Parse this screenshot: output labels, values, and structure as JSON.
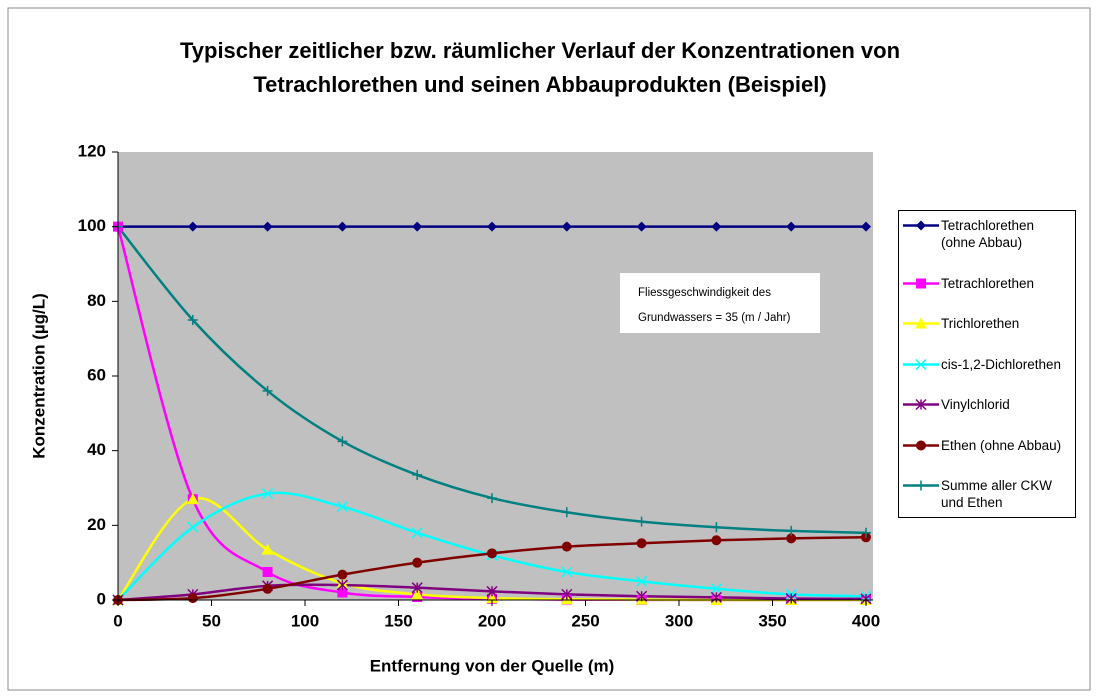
{
  "chart_data": {
    "type": "line",
    "title": [
      "Typischer zeitlicher bzw. räumlicher Verlauf der Konzentrationen von",
      "Tetrachlorethen und seinen Abbauprodukten (Beispiel)"
    ],
    "x_label": "Entfernung von der Quelle (m)",
    "y_label": "Konzentration (µg/L)",
    "annotation": [
      "Fliessgeschwindigkeit des",
      "Grundwassers = 35 (m / Jahr)"
    ],
    "x": [
      0,
      40,
      80,
      120,
      160,
      200,
      240,
      280,
      320,
      360,
      400
    ],
    "xlim": [
      0,
      400
    ],
    "xticks": [
      0,
      50,
      100,
      150,
      200,
      250,
      300,
      350,
      400
    ],
    "ylim": [
      0,
      120
    ],
    "yticks": [
      0,
      20,
      40,
      60,
      80,
      100,
      120
    ],
    "grid": false,
    "legend": "right",
    "series": [
      {
        "name": "Tetrachlorethen (ohne Abbau)",
        "color": "#000080",
        "marker": "diamond",
        "values": [
          100,
          100,
          100,
          100,
          100,
          100,
          100,
          100,
          100,
          100,
          100
        ]
      },
      {
        "name": "Tetrachlorethen",
        "color": "#ff00ff",
        "marker": "square",
        "values": [
          100,
          27,
          7.5,
          2,
          0.8,
          0.3,
          0.1,
          0.05,
          0,
          0,
          0
        ]
      },
      {
        "name": "Trichlorethen",
        "color": "#ffff00",
        "marker": "triangle",
        "values": [
          0,
          27,
          13.5,
          4.5,
          1.5,
          0.5,
          0.2,
          0.1,
          0,
          0,
          0
        ]
      },
      {
        "name": "cis-1,2-Dichlorethen",
        "color": "#00ffff",
        "marker": "x",
        "values": [
          0,
          19.5,
          28.5,
          25,
          18,
          12,
          7.5,
          5,
          3,
          1.5,
          1
        ]
      },
      {
        "name": "Vinylchlorid",
        "color": "#800080",
        "marker": "star",
        "values": [
          0,
          1.5,
          3.8,
          4,
          3.3,
          2.3,
          1.5,
          1,
          0.7,
          0.4,
          0.3
        ]
      },
      {
        "name": "Ethen (ohne Abbau)",
        "color": "#800000",
        "marker": "circle",
        "values": [
          0,
          0.5,
          3,
          6.8,
          10,
          12.5,
          14.3,
          15.2,
          16,
          16.5,
          16.8
        ]
      },
      {
        "name": "Summe aller CKW und Ethen",
        "color": "#008080",
        "marker": "plus",
        "values": [
          100,
          75,
          56,
          42.5,
          33.5,
          27.3,
          23.5,
          21,
          19.5,
          18.5,
          18
        ]
      }
    ]
  }
}
